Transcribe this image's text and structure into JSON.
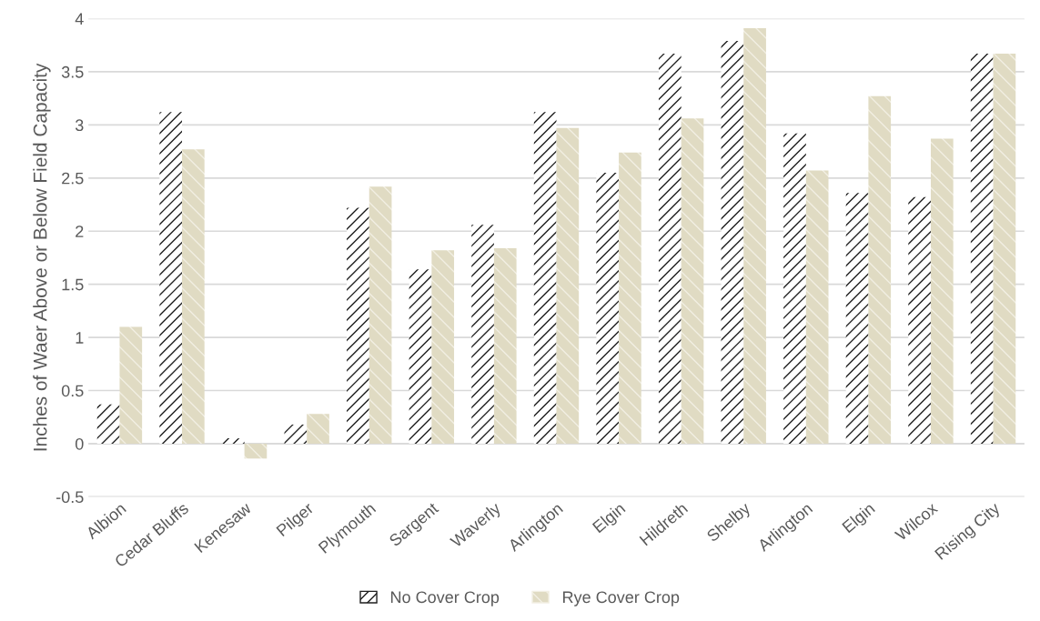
{
  "chart_data": {
    "type": "bar",
    "ylabel": "Inches of Waer Above or Below Field Capacity",
    "categories": [
      "Albion",
      "Cedar Bluffs",
      "Kenesaw",
      "Pilger",
      "Plymouth",
      "Sargent",
      "Waverly",
      "Arlington",
      "Elgin",
      "Hildreth",
      "Shelby",
      "Arlington",
      "Elgin",
      "Wilcox",
      "Rising City"
    ],
    "series": [
      {
        "name": "No Cover Crop",
        "color": "#1f1f1f",
        "values": [
          0.37,
          3.12,
          0.05,
          0.18,
          2.22,
          1.64,
          2.06,
          3.12,
          2.55,
          3.67,
          3.79,
          2.92,
          2.36,
          2.32,
          3.67
        ]
      },
      {
        "name": "Rye Cover Crop",
        "color": "#e0dbc3",
        "values": [
          1.1,
          2.77,
          -0.14,
          0.28,
          2.42,
          1.82,
          1.84,
          2.97,
          2.74,
          3.06,
          3.91,
          2.57,
          3.27,
          2.87,
          3.67
        ]
      }
    ],
    "ylim": [
      -0.5,
      4
    ],
    "yticks": [
      -0.5,
      0,
      0.5,
      1,
      1.5,
      2,
      2.5,
      3,
      3.5,
      4
    ],
    "grid": "y",
    "legend": "bottom"
  }
}
